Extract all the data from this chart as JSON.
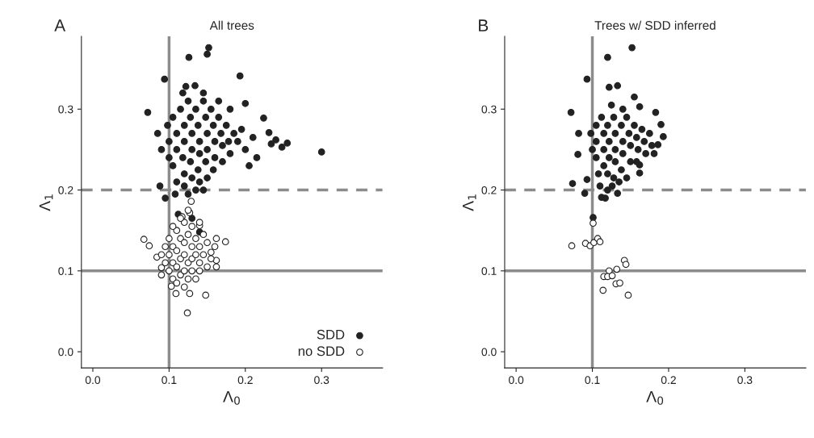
{
  "chart_data": [
    {
      "type": "scatter",
      "title": "All trees",
      "annotations": [
        "A"
      ],
      "xlabel": "Λ$_{0}$",
      "ylabel": "Λ$_{1}$",
      "xlim": [
        -0.015,
        0.38
      ],
      "ylim": [
        -0.02,
        0.39
      ],
      "xticks": [
        {
          "value": 0,
          "label": "0.0"
        },
        0.1,
        0.2,
        0.3
      ],
      "yticks": [
        {
          "value": 0,
          "label": "0.0"
        },
        0.1,
        0.2,
        0.3
      ],
      "grid": false,
      "legend": "bottom right",
      "marker": "circle",
      "ref_lines": [
        {
          "axis": "x",
          "value": 0.1,
          "color": "#8c8c8c",
          "line_style": "solid"
        },
        {
          "axis": "y",
          "value": 0.1,
          "color": "#8c8c8c",
          "line_style": "solid"
        },
        {
          "axis": "y",
          "value": 0.2,
          "color": "#8c8c8c",
          "line_style": "dashed"
        }
      ],
      "series": [
        {
          "name": "SDD",
          "color": "#222222",
          "x": [
            0.152,
            0.15,
            0.126,
            0.193,
            0.094,
            0.122,
            0.134,
            0.072,
            0.2,
            0.224,
            0.231,
            0.234,
            0.3,
            0.255,
            0.248,
            0.24,
            0.105,
            0.11,
            0.11,
            0.105,
            0.11,
            0.115,
            0.12,
            0.12,
            0.118,
            0.12,
            0.12,
            0.125,
            0.128,
            0.13,
            0.13,
            0.128,
            0.13,
            0.135,
            0.138,
            0.14,
            0.14,
            0.138,
            0.14,
            0.145,
            0.148,
            0.15,
            0.15,
            0.148,
            0.15,
            0.155,
            0.158,
            0.16,
            0.16,
            0.158,
            0.165,
            0.168,
            0.17,
            0.17,
            0.175,
            0.178,
            0.18,
            0.185,
            0.19,
            0.195,
            0.2,
            0.21,
            0.215,
            0.205,
            0.1,
            0.1,
            0.098,
            0.108,
            0.125,
            0.135,
            0.145,
            0.09,
            0.085,
            0.088,
            0.095,
            0.112,
            0.13,
            0.14,
            0.118,
            0.145,
            0.165,
            0.18
          ],
          "values": [
            0.376,
            0.368,
            0.364,
            0.341,
            0.337,
            0.328,
            0.329,
            0.296,
            0.307,
            0.289,
            0.271,
            0.257,
            0.247,
            0.258,
            0.253,
            0.262,
            0.29,
            0.27,
            0.25,
            0.23,
            0.21,
            0.3,
            0.28,
            0.26,
            0.24,
            0.22,
            0.205,
            0.31,
            0.29,
            0.27,
            0.25,
            0.235,
            0.215,
            0.3,
            0.28,
            0.26,
            0.245,
            0.225,
            0.21,
            0.31,
            0.29,
            0.27,
            0.25,
            0.235,
            0.215,
            0.3,
            0.28,
            0.26,
            0.24,
            0.225,
            0.29,
            0.27,
            0.255,
            0.235,
            0.28,
            0.26,
            0.245,
            0.27,
            0.26,
            0.275,
            0.25,
            0.265,
            0.24,
            0.23,
            0.26,
            0.24,
            0.28,
            0.195,
            0.195,
            0.2,
            0.2,
            0.25,
            0.27,
            0.205,
            0.19,
            0.17,
            0.165,
            0.148,
            0.32,
            0.32,
            0.31,
            0.3
          ]
        },
        {
          "name": "no SDD",
          "color": "#ffffff",
          "x": [
            0.067,
            0.074,
            0.174,
            0.162,
            0.148,
            0.124,
            0.103,
            0.109,
            0.127,
            0.129,
            0.117,
            0.127,
            0.09,
            0.084,
            0.162,
            0.162,
            0.155,
            0.14,
            0.1,
            0.1,
            0.1,
            0.105,
            0.105,
            0.105,
            0.11,
            0.11,
            0.11,
            0.11,
            0.115,
            0.115,
            0.115,
            0.12,
            0.12,
            0.12,
            0.12,
            0.12,
            0.125,
            0.125,
            0.125,
            0.13,
            0.13,
            0.13,
            0.13,
            0.135,
            0.135,
            0.135,
            0.14,
            0.14,
            0.14,
            0.145,
            0.145,
            0.15,
            0.15,
            0.155,
            0.095,
            0.095,
            0.09,
            0.09,
            0.115,
            0.125,
            0.14,
            0.105,
            0.16
          ],
          "values": [
            0.139,
            0.131,
            0.136,
            0.14,
            0.07,
            0.048,
            0.081,
            0.072,
            0.072,
            0.186,
            0.167,
            0.172,
            0.104,
            0.117,
            0.105,
            0.113,
            0.123,
            0.156,
            0.14,
            0.12,
            0.1,
            0.13,
            0.11,
            0.09,
            0.15,
            0.125,
            0.105,
            0.085,
            0.14,
            0.115,
            0.095,
            0.16,
            0.135,
            0.12,
            0.1,
            0.08,
            0.145,
            0.11,
            0.09,
            0.155,
            0.13,
            0.115,
            0.1,
            0.14,
            0.12,
            0.09,
            0.13,
            0.11,
            0.1,
            0.145,
            0.12,
            0.135,
            0.105,
            0.115,
            0.13,
            0.11,
            0.12,
            0.095,
            0.165,
            0.175,
            0.16,
            0.155,
            0.13
          ]
        }
      ]
    },
    {
      "type": "scatter",
      "title": "Trees w/ SDD inferred",
      "annotations": [
        "B"
      ],
      "xlabel": "Λ$_{0}$",
      "ylabel": "Λ$_{1}$",
      "xlim": [
        -0.015,
        0.38
      ],
      "ylim": [
        -0.02,
        0.39
      ],
      "xticks": [
        {
          "value": 0,
          "label": "0.0"
        },
        0.1,
        0.2,
        0.3
      ],
      "yticks": [
        {
          "value": 0,
          "label": "0.0"
        },
        0.1,
        0.2,
        0.3
      ],
      "grid": false,
      "marker": "circle",
      "ref_lines": [
        {
          "axis": "x",
          "value": 0.1,
          "color": "#8c8c8c",
          "line_style": "solid"
        },
        {
          "axis": "y",
          "value": 0.1,
          "color": "#8c8c8c",
          "line_style": "solid"
        },
        {
          "axis": "y",
          "value": 0.2,
          "color": "#8c8c8c",
          "line_style": "dashed"
        }
      ],
      "series": [
        {
          "color": "#222222",
          "x": [
            0.152,
            0.12,
            0.093,
            0.122,
            0.133,
            0.072,
            0.155,
            0.162,
            0.183,
            0.19,
            0.193,
            0.186,
            0.181,
            0.162,
            0.162,
            0.082,
            0.081,
            0.074,
            0.093,
            0.09,
            0.112,
            0.117,
            0.133,
            0.126,
            0.101,
            0.105,
            0.105,
            0.105,
            0.108,
            0.112,
            0.115,
            0.115,
            0.115,
            0.12,
            0.122,
            0.122,
            0.12,
            0.128,
            0.13,
            0.13,
            0.13,
            0.128,
            0.138,
            0.14,
            0.14,
            0.138,
            0.145,
            0.148,
            0.15,
            0.15,
            0.155,
            0.158,
            0.16,
            0.158,
            0.165,
            0.168,
            0.17,
            0.175,
            0.178,
            0.14,
            0.125,
            0.1,
            0.098,
            0.11,
            0.12,
            0.135,
            0.145
          ],
          "values": [
            0.376,
            0.364,
            0.337,
            0.327,
            0.329,
            0.296,
            0.315,
            0.303,
            0.296,
            0.281,
            0.266,
            0.256,
            0.245,
            0.221,
            0.231,
            0.27,
            0.244,
            0.208,
            0.213,
            0.196,
            0.191,
            0.19,
            0.196,
            0.205,
            0.166,
            0.28,
            0.26,
            0.24,
            0.22,
            0.29,
            0.27,
            0.25,
            0.23,
            0.28,
            0.26,
            0.24,
            0.22,
            0.29,
            0.27,
            0.25,
            0.235,
            0.215,
            0.28,
            0.26,
            0.245,
            0.225,
            0.29,
            0.27,
            0.255,
            0.235,
            0.28,
            0.265,
            0.25,
            0.235,
            0.275,
            0.26,
            0.245,
            0.27,
            0.255,
            0.3,
            0.305,
            0.25,
            0.27,
            0.205,
            0.2,
            0.21,
            0.215
          ]
        },
        {
          "color": "#ffffff",
          "x": [
            0.101,
            0.073,
            0.091,
            0.097,
            0.102,
            0.107,
            0.11,
            0.142,
            0.144,
            0.132,
            0.122,
            0.115,
            0.12,
            0.126,
            0.131,
            0.136,
            0.114,
            0.147
          ],
          "values": [
            0.159,
            0.131,
            0.134,
            0.131,
            0.135,
            0.14,
            0.136,
            0.113,
            0.108,
            0.102,
            0.1,
            0.093,
            0.093,
            0.094,
            0.084,
            0.085,
            0.076,
            0.07
          ]
        }
      ]
    }
  ]
}
